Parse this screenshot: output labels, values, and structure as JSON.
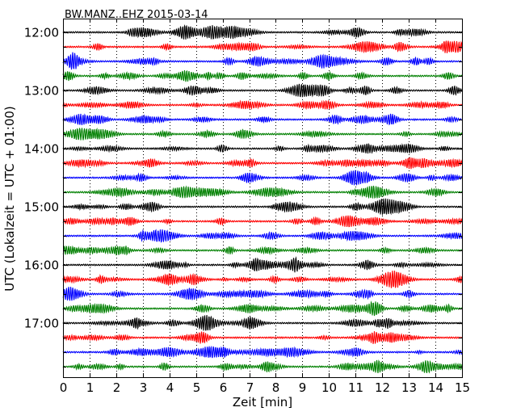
{
  "chart_data": {
    "type": "line",
    "title": "BW.MANZ..EHZ 2015-03-14",
    "xlabel": "Zeit  [min]",
    "ylabel": "UTC (Lokalzeit = UTC + 01:00)",
    "xlim": [
      0,
      15
    ],
    "x_ticks": [
      "0",
      "1",
      "2",
      "3",
      "4",
      "5",
      "6",
      "7",
      "8",
      "9",
      "10",
      "11",
      "12",
      "13",
      "14",
      "15"
    ],
    "y_ticks": [
      "12:00",
      "13:00",
      "14:00",
      "15:00",
      "16:00",
      "17:00"
    ],
    "x_grid": true,
    "trace_interval_min": 15,
    "start_time": "12:00",
    "trace_colors": [
      "#000000",
      "#ff0000",
      "#0000ff",
      "#008000"
    ],
    "traces": [
      {
        "start": "12:00",
        "color": "#000000"
      },
      {
        "start": "12:15",
        "color": "#ff0000"
      },
      {
        "start": "12:30",
        "color": "#0000ff"
      },
      {
        "start": "12:45",
        "color": "#008000"
      },
      {
        "start": "13:00",
        "color": "#000000"
      },
      {
        "start": "13:15",
        "color": "#ff0000"
      },
      {
        "start": "13:30",
        "color": "#0000ff"
      },
      {
        "start": "13:45",
        "color": "#008000"
      },
      {
        "start": "14:00",
        "color": "#000000"
      },
      {
        "start": "14:15",
        "color": "#ff0000"
      },
      {
        "start": "14:30",
        "color": "#0000ff"
      },
      {
        "start": "14:45",
        "color": "#008000"
      },
      {
        "start": "15:00",
        "color": "#000000"
      },
      {
        "start": "15:15",
        "color": "#ff0000"
      },
      {
        "start": "15:30",
        "color": "#0000ff"
      },
      {
        "start": "15:45",
        "color": "#008000"
      },
      {
        "start": "16:00",
        "color": "#000000"
      },
      {
        "start": "16:15",
        "color": "#ff0000"
      },
      {
        "start": "16:30",
        "color": "#0000ff"
      },
      {
        "start": "16:45",
        "color": "#008000"
      },
      {
        "start": "17:00",
        "color": "#000000"
      },
      {
        "start": "17:15",
        "color": "#ff0000"
      },
      {
        "start": "17:30",
        "color": "#0000ff"
      },
      {
        "start": "17:45",
        "color": "#008000"
      }
    ]
  }
}
